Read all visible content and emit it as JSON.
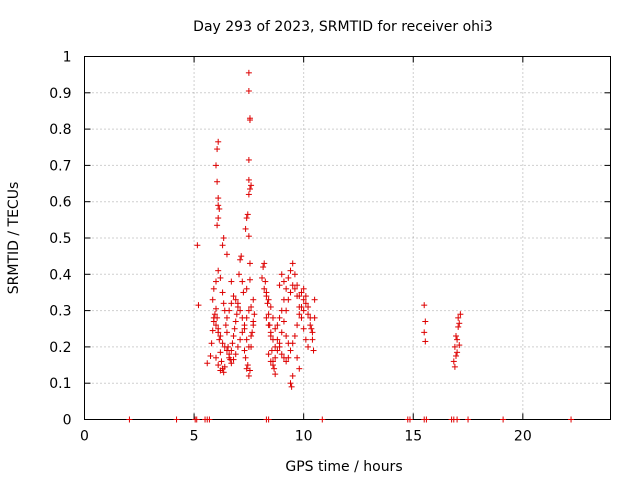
{
  "chart_data": {
    "type": "scatter",
    "title": "Day 293 of 2023, SRMTID for receiver ohi3",
    "xlabel": "GPS time / hours",
    "ylabel": "SRMTID / TECUs",
    "xlim": [
      0,
      24
    ],
    "ylim": [
      0,
      1
    ],
    "xticks": [
      0,
      5,
      10,
      15,
      20
    ],
    "xtick_labels": [
      "0",
      "5",
      "10",
      "15",
      "20"
    ],
    "yticks": [
      0,
      0.1,
      0.2,
      0.3,
      0.4,
      0.5,
      0.6,
      0.7,
      0.8,
      0.9,
      1
    ],
    "ytick_labels": [
      "0",
      "0.1",
      "0.2",
      "0.3",
      "0.4",
      "0.5",
      "0.6",
      "0.7",
      "0.8",
      "0.9",
      "1"
    ],
    "grid": true,
    "marker": "+",
    "series": [
      {
        "name": "SRMTID",
        "color": "#dd0000",
        "points": [
          [
            2.05,
            0
          ],
          [
            4.2,
            0
          ],
          [
            5.05,
            0
          ],
          [
            5.12,
            0
          ],
          [
            5.5,
            0
          ],
          [
            5.6,
            0
          ],
          [
            5.7,
            0
          ],
          [
            8.3,
            0
          ],
          [
            8.4,
            0
          ],
          [
            10.85,
            0
          ],
          [
            14.75,
            0
          ],
          [
            14.85,
            0
          ],
          [
            15.5,
            0
          ],
          [
            15.6,
            0
          ],
          [
            16.75,
            0
          ],
          [
            16.85,
            0
          ],
          [
            17.0,
            0
          ],
          [
            17.5,
            0
          ],
          [
            19.1,
            0
          ],
          [
            22.2,
            0
          ],
          [
            5.15,
            0.48
          ],
          [
            5.2,
            0.315
          ],
          [
            5.6,
            0.155
          ],
          [
            5.75,
            0.175
          ],
          [
            5.8,
            0.21
          ],
          [
            5.85,
            0.245
          ],
          [
            5.9,
            0.27
          ],
          [
            5.95,
            0.29
          ],
          [
            6.0,
            0.305
          ],
          [
            6.05,
            0.28
          ],
          [
            6.1,
            0.25
          ],
          [
            6.15,
            0.22
          ],
          [
            6.2,
            0.185
          ],
          [
            6.25,
            0.16
          ],
          [
            6.3,
            0.14
          ],
          [
            6.35,
            0.13
          ],
          [
            6.4,
            0.145
          ],
          [
            5.85,
            0.33
          ],
          [
            5.9,
            0.36
          ],
          [
            6.0,
            0.38
          ],
          [
            6.1,
            0.41
          ],
          [
            6.2,
            0.39
          ],
          [
            6.3,
            0.35
          ],
          [
            6.35,
            0.32
          ],
          [
            6.4,
            0.3
          ],
          [
            6.45,
            0.26
          ],
          [
            6.5,
            0.24
          ],
          [
            6.55,
            0.2
          ],
          [
            6.6,
            0.18
          ],
          [
            6.65,
            0.165
          ],
          [
            6.7,
            0.19
          ],
          [
            6.75,
            0.21
          ],
          [
            6.8,
            0.23
          ],
          [
            6.85,
            0.25
          ],
          [
            6.9,
            0.27
          ],
          [
            6.95,
            0.29
          ],
          [
            7.0,
            0.31
          ],
          [
            5.9,
            0.28
          ],
          [
            6.0,
            0.26
          ],
          [
            6.1,
            0.24
          ],
          [
            6.2,
            0.23
          ],
          [
            6.3,
            0.21
          ],
          [
            6.4,
            0.2
          ],
          [
            6.5,
            0.19
          ],
          [
            6.6,
            0.17
          ],
          [
            6.7,
            0.155
          ],
          [
            6.8,
            0.165
          ],
          [
            6.9,
            0.18
          ],
          [
            7.0,
            0.2
          ],
          [
            7.1,
            0.22
          ],
          [
            7.2,
            0.24
          ],
          [
            7.3,
            0.26
          ],
          [
            7.4,
            0.28
          ],
          [
            7.5,
            0.3
          ],
          [
            7.6,
            0.31
          ],
          [
            7.7,
            0.33
          ],
          [
            6.0,
            0.17
          ],
          [
            6.1,
            0.15
          ],
          [
            6.2,
            0.135
          ],
          [
            6.5,
            0.28
          ],
          [
            6.6,
            0.3
          ],
          [
            6.7,
            0.32
          ],
          [
            6.8,
            0.34
          ],
          [
            6.9,
            0.33
          ],
          [
            7.0,
            0.32
          ],
          [
            7.1,
            0.3
          ],
          [
            7.2,
            0.28
          ],
          [
            7.3,
            0.25
          ],
          [
            7.4,
            0.22
          ],
          [
            7.5,
            0.2
          ],
          [
            7.6,
            0.23
          ],
          [
            7.7,
            0.26
          ],
          [
            7.05,
            0.4
          ],
          [
            7.1,
            0.44
          ],
          [
            7.15,
            0.45
          ],
          [
            7.2,
            0.38
          ],
          [
            7.25,
            0.35
          ],
          [
            7.3,
            0.19
          ],
          [
            7.35,
            0.17
          ],
          [
            7.4,
            0.14
          ],
          [
            7.45,
            0.15
          ],
          [
            7.5,
            0.12
          ],
          [
            7.55,
            0.135
          ],
          [
            7.6,
            0.2
          ],
          [
            7.65,
            0.24
          ],
          [
            7.7,
            0.27
          ],
          [
            7.75,
            0.29
          ],
          [
            6.05,
            0.535
          ],
          [
            6.1,
            0.555
          ],
          [
            6.15,
            0.58
          ],
          [
            6.1,
            0.59
          ],
          [
            6.1,
            0.61
          ],
          [
            6.05,
            0.655
          ],
          [
            6.0,
            0.7
          ],
          [
            6.05,
            0.745
          ],
          [
            6.1,
            0.765
          ],
          [
            6.3,
            0.48
          ],
          [
            6.35,
            0.5
          ],
          [
            6.5,
            0.455
          ],
          [
            6.7,
            0.38
          ],
          [
            7.35,
            0.525
          ],
          [
            7.4,
            0.555
          ],
          [
            7.45,
            0.565
          ],
          [
            7.5,
            0.505
          ],
          [
            7.55,
            0.43
          ],
          [
            7.55,
            0.385
          ],
          [
            7.4,
            0.36
          ],
          [
            7.5,
            0.62
          ],
          [
            7.55,
            0.635
          ],
          [
            7.6,
            0.645
          ],
          [
            7.5,
            0.66
          ],
          [
            7.5,
            0.715
          ],
          [
            7.55,
            0.825
          ],
          [
            7.55,
            0.83
          ],
          [
            7.5,
            0.905
          ],
          [
            7.5,
            0.955
          ],
          [
            8.1,
            0.39
          ],
          [
            8.15,
            0.42
          ],
          [
            8.2,
            0.43
          ],
          [
            8.25,
            0.38
          ],
          [
            8.3,
            0.35
          ],
          [
            8.35,
            0.32
          ],
          [
            8.4,
            0.29
          ],
          [
            8.45,
            0.26
          ],
          [
            8.5,
            0.23
          ],
          [
            8.55,
            0.19
          ],
          [
            8.6,
            0.16
          ],
          [
            8.65,
            0.14
          ],
          [
            8.7,
            0.125
          ],
          [
            8.2,
            0.36
          ],
          [
            8.3,
            0.34
          ],
          [
            8.4,
            0.33
          ],
          [
            8.5,
            0.31
          ],
          [
            8.6,
            0.28
          ],
          [
            8.7,
            0.25
          ],
          [
            8.8,
            0.22
          ],
          [
            8.9,
            0.2
          ],
          [
            9.0,
            0.18
          ],
          [
            9.1,
            0.17
          ],
          [
            9.2,
            0.16
          ],
          [
            9.3,
            0.17
          ],
          [
            9.4,
            0.19
          ],
          [
            9.5,
            0.21
          ],
          [
            9.6,
            0.23
          ],
          [
            9.7,
            0.26
          ],
          [
            9.8,
            0.29
          ],
          [
            9.9,
            0.31
          ],
          [
            10.0,
            0.33
          ],
          [
            8.3,
            0.28
          ],
          [
            8.4,
            0.26
          ],
          [
            8.5,
            0.24
          ],
          [
            8.6,
            0.22
          ],
          [
            8.7,
            0.2
          ],
          [
            8.8,
            0.19
          ],
          [
            8.9,
            0.21
          ],
          [
            9.0,
            0.24
          ],
          [
            9.1,
            0.27
          ],
          [
            9.2,
            0.3
          ],
          [
            9.3,
            0.33
          ],
          [
            9.4,
            0.35
          ],
          [
            9.5,
            0.37
          ],
          [
            9.6,
            0.36
          ],
          [
            9.7,
            0.34
          ],
          [
            9.8,
            0.31
          ],
          [
            9.9,
            0.28
          ],
          [
            10.0,
            0.25
          ],
          [
            10.1,
            0.22
          ],
          [
            10.2,
            0.2
          ],
          [
            8.4,
            0.18
          ],
          [
            8.5,
            0.16
          ],
          [
            8.6,
            0.15
          ],
          [
            8.7,
            0.17
          ],
          [
            8.8,
            0.26
          ],
          [
            8.9,
            0.28
          ],
          [
            9.0,
            0.3
          ],
          [
            9.1,
            0.33
          ],
          [
            9.2,
            0.36
          ],
          [
            9.3,
            0.39
          ],
          [
            9.4,
            0.41
          ],
          [
            9.5,
            0.43
          ],
          [
            9.6,
            0.4
          ],
          [
            9.7,
            0.37
          ],
          [
            9.8,
            0.34
          ],
          [
            9.9,
            0.35
          ],
          [
            10.0,
            0.36
          ],
          [
            10.1,
            0.34
          ],
          [
            10.2,
            0.31
          ],
          [
            10.3,
            0.28
          ],
          [
            10.35,
            0.25
          ],
          [
            10.4,
            0.22
          ],
          [
            10.45,
            0.19
          ],
          [
            10.5,
            0.33
          ],
          [
            8.9,
            0.37
          ],
          [
            9.0,
            0.4
          ],
          [
            9.1,
            0.38
          ],
          [
            9.2,
            0.23
          ],
          [
            9.3,
            0.21
          ],
          [
            9.4,
            0.1
          ],
          [
            9.45,
            0.09
          ],
          [
            9.5,
            0.12
          ],
          [
            9.7,
            0.17
          ],
          [
            9.8,
            0.14
          ],
          [
            10.0,
            0.3
          ],
          [
            10.1,
            0.32
          ],
          [
            10.2,
            0.29
          ],
          [
            10.3,
            0.26
          ],
          [
            10.4,
            0.24
          ],
          [
            10.5,
            0.28
          ],
          [
            15.5,
            0.315
          ],
          [
            15.55,
            0.27
          ],
          [
            15.5,
            0.24
          ],
          [
            15.55,
            0.215
          ],
          [
            16.85,
            0.16
          ],
          [
            16.9,
            0.145
          ],
          [
            16.95,
            0.175
          ],
          [
            16.9,
            0.2
          ],
          [
            17.0,
            0.185
          ],
          [
            17.0,
            0.22
          ],
          [
            17.05,
            0.255
          ],
          [
            17.1,
            0.265
          ],
          [
            17.05,
            0.28
          ],
          [
            17.15,
            0.29
          ],
          [
            17.1,
            0.205
          ],
          [
            16.95,
            0.23
          ]
        ]
      }
    ]
  }
}
